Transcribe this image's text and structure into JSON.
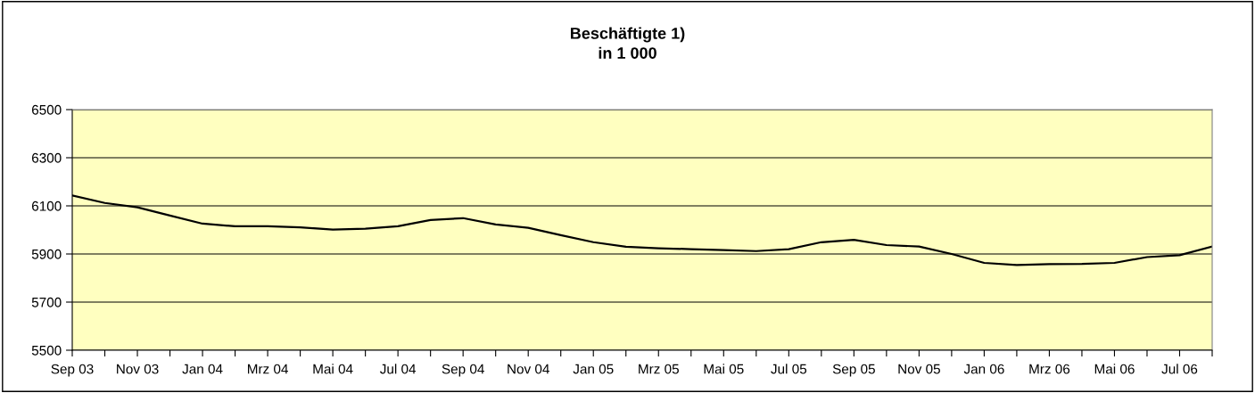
{
  "chart_data": {
    "type": "line",
    "title": "Beschäftigte 1)\nin 1 000",
    "categories": [
      "Sep 03",
      null,
      "Nov 03",
      null,
      "Jan 04",
      null,
      "Mrz 04",
      null,
      "Mai 04",
      null,
      "Jul 04",
      null,
      "Sep 04",
      null,
      "Nov 04",
      null,
      "Jan 05",
      null,
      "Mrz 05",
      null,
      "Mai 05",
      null,
      "Jul 05",
      null,
      "Sep 05",
      null,
      "Nov 05",
      null,
      "Jan 06",
      null,
      "Mrz 06",
      null,
      "Mai 06",
      null,
      "Jul 06",
      null
    ],
    "series": [
      {
        "color": "#000000",
        "values": [
          6143,
          6112,
          6094,
          6060,
          6026,
          6015,
          6015,
          6011,
          6001,
          6005,
          6015,
          6041,
          6049,
          6023,
          6009,
          5978,
          5949,
          5930,
          5924,
          5920,
          5916,
          5912,
          5920,
          5949,
          5959,
          5937,
          5931,
          5900,
          5863,
          5854,
          5858,
          5859,
          5863,
          5887,
          5895,
          5931
        ]
      }
    ],
    "ylim": [
      5500,
      6500
    ],
    "yticks": [
      5500,
      5700,
      5900,
      6100,
      6300,
      6500
    ],
    "grid": "y",
    "legend": false,
    "marker": "none",
    "line_style": "solid"
  }
}
